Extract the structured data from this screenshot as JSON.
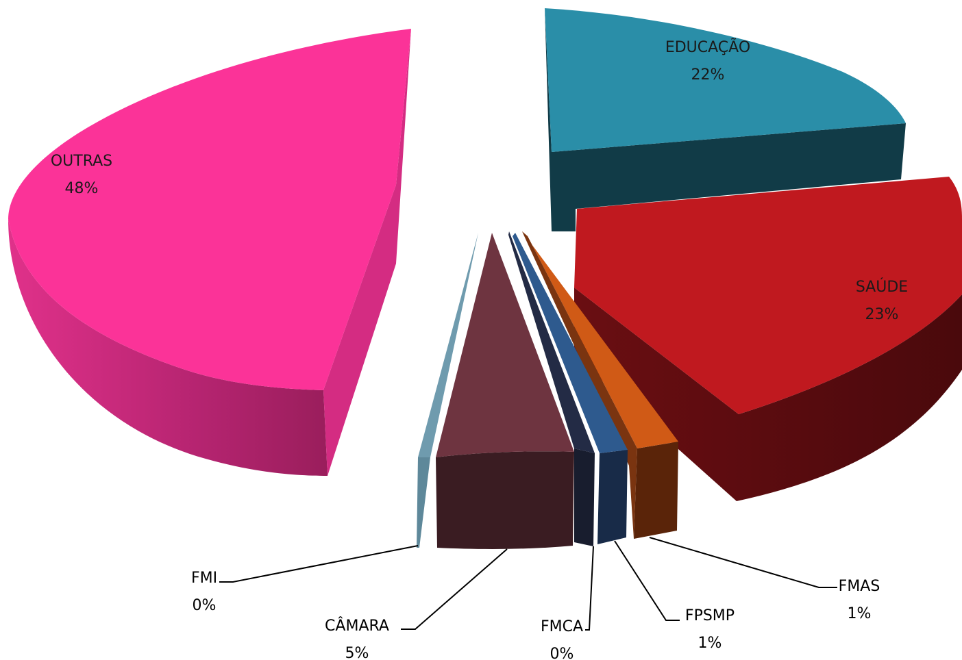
{
  "chart_data": {
    "type": "pie",
    "style": "3d-exploded",
    "series": [
      {
        "name": "EDUCAÇÃO",
        "value": 22,
        "label": "22%",
        "color": "#2A8EA8",
        "side_color": "#113B47"
      },
      {
        "name": "SAÚDE",
        "value": 23,
        "label": "23%",
        "color": "#C0191F",
        "side_color": "#520A0C"
      },
      {
        "name": "FMAS",
        "value": 1,
        "label": "1%",
        "color": "#D05A16",
        "side_color": "#5A2409"
      },
      {
        "name": "FPSMP",
        "value": 1,
        "label": "1%",
        "color": "#2E5A8E",
        "side_color": "#182B48"
      },
      {
        "name": "FMCA",
        "value": 0,
        "label": "0%",
        "color": "#232B45",
        "side_color": "#181D2E"
      },
      {
        "name": "CÂMARA",
        "value": 5,
        "label": "5%",
        "color": "#6E3440",
        "side_color": "#3A1C22"
      },
      {
        "name": "FMI",
        "value": 0,
        "label": "0%",
        "color": "#6F9BAE",
        "side_color": "#5E889A"
      },
      {
        "name": "OUTRAS",
        "value": 48,
        "label": "48%",
        "color": "#FB3398",
        "side_color": "#C22775"
      }
    ],
    "legend": "none",
    "title": ""
  }
}
